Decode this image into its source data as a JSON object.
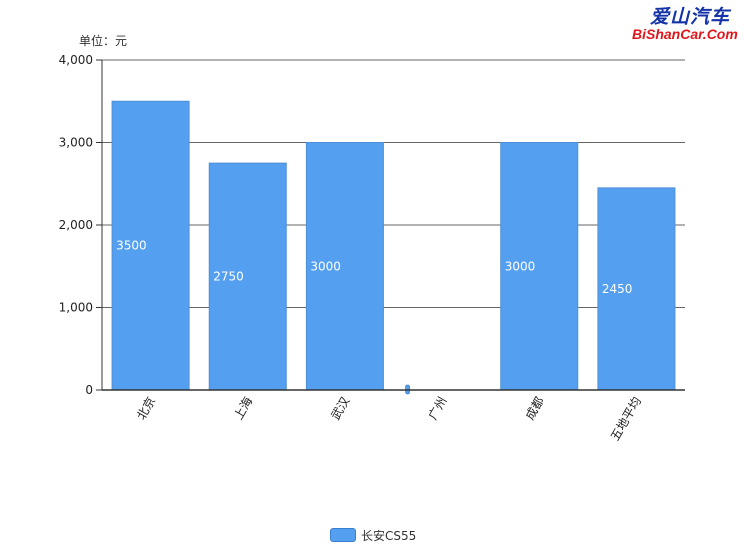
{
  "logo": {
    "cn_text": "爱山汽车",
    "en_text": "BiShanCar.Com"
  },
  "chart_data": {
    "type": "bar",
    "unit_label": "单位：元",
    "categories": [
      "北京",
      "上海",
      "武汉",
      "广州",
      "成都",
      "五地平均"
    ],
    "series": [
      {
        "name": "长安CS55",
        "values": [
          3500,
          2750,
          3000,
          0,
          3000,
          2450
        ],
        "color": "#559ff0"
      }
    ],
    "data_labels": [
      "3500",
      "2750",
      "3000",
      "0",
      "3000",
      "2450"
    ],
    "ylim": [
      0,
      4000
    ],
    "yticks": [
      0,
      1000,
      2000,
      3000,
      4000
    ],
    "ytick_labels": [
      "0",
      "1,000",
      "2,000",
      "3,000",
      "4,000"
    ],
    "grid": true,
    "legend_position": "bottom"
  }
}
